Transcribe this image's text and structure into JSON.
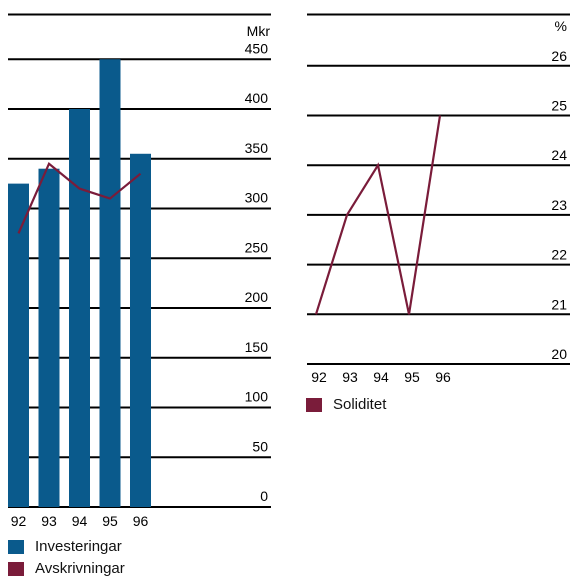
{
  "chart_data": [
    {
      "type": "bar",
      "categories": [
        "92",
        "93",
        "94",
        "95",
        "96"
      ],
      "series": [
        {
          "name": "Investeringar",
          "type": "bar",
          "values": [
            325,
            340,
            400,
            450,
            355
          ]
        },
        {
          "name": "Avskrivningar",
          "type": "line",
          "values": [
            275,
            345,
            320,
            310,
            335
          ]
        }
      ],
      "unit": "Mkr",
      "ylim": [
        0,
        500
      ],
      "yticks": [
        0,
        50,
        100,
        150,
        200,
        250,
        300,
        350,
        400,
        450
      ],
      "grid": true,
      "legend_position": "bottom-left",
      "colors": {
        "Investeringar": "#0a5a8c",
        "Avskrivningar": "#7a1c3a"
      }
    },
    {
      "type": "line",
      "categories": [
        "92",
        "93",
        "94",
        "95",
        "96"
      ],
      "series": [
        {
          "name": "Soliditet",
          "values": [
            21,
            23,
            24,
            21,
            25
          ]
        }
      ],
      "unit": "%",
      "ylim": [
        20,
        27
      ],
      "yticks": [
        20,
        21,
        22,
        23,
        24,
        25,
        26
      ],
      "grid": true,
      "legend_position": "bottom-left",
      "colors": {
        "Soliditet": "#7a1c3a"
      }
    }
  ]
}
